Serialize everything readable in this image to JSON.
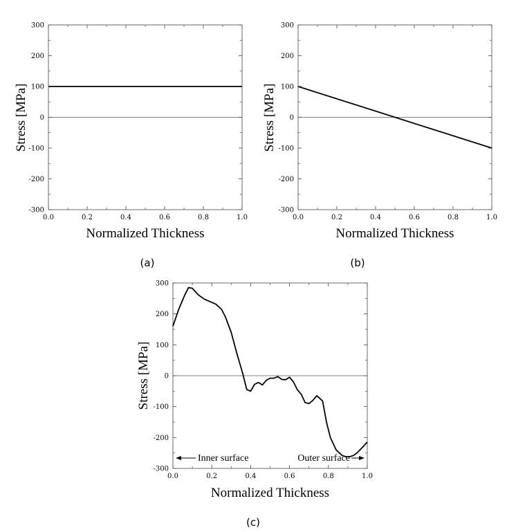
{
  "chart_data": [
    {
      "id": "a",
      "type": "line",
      "caption": "(a)",
      "xlabel": "Normalized Thickness",
      "ylabel": "Stress [MPa]",
      "xlim": [
        0,
        1
      ],
      "ylim": [
        -300,
        300
      ],
      "xticks": [
        "0.0",
        "0.2",
        "0.4",
        "0.6",
        "0.8",
        "1.0"
      ],
      "yticks": [
        "300",
        "200",
        "100",
        "0",
        "-100",
        "-200",
        "-300"
      ],
      "zero_line": true,
      "series": [
        {
          "name": "stress",
          "x": [
            0,
            1
          ],
          "y": [
            100,
            100
          ]
        }
      ]
    },
    {
      "id": "b",
      "type": "line",
      "caption": "(b)",
      "xlabel": "Normalized Thickness",
      "ylabel": "Stress [MPa]",
      "xlim": [
        0,
        1
      ],
      "ylim": [
        -300,
        300
      ],
      "xticks": [
        "0.0",
        "0.2",
        "0.4",
        "0.6",
        "0.8",
        "1.0"
      ],
      "yticks": [
        "300",
        "200",
        "100",
        "0",
        "-100",
        "-200",
        "-300"
      ],
      "zero_line": true,
      "series": [
        {
          "name": "stress",
          "x": [
            0,
            1
          ],
          "y": [
            100,
            -100
          ]
        }
      ]
    },
    {
      "id": "c",
      "type": "line",
      "caption": "(c)",
      "xlabel": "Normalized Thickness",
      "ylabel": "Stress [MPa]",
      "xlim": [
        0,
        1
      ],
      "ylim": [
        -300,
        300
      ],
      "xticks": [
        "0.0",
        "0.2",
        "0.4",
        "0.6",
        "0.8",
        "1.0"
      ],
      "yticks": [
        "300",
        "200",
        "100",
        "0",
        "-100",
        "-200",
        "-300"
      ],
      "zero_line": true,
      "annotations": {
        "inner": "Inner surface",
        "outer": "Outer surface"
      },
      "series": [
        {
          "name": "stress",
          "x": [
            0,
            0.03,
            0.06,
            0.08,
            0.1,
            0.13,
            0.16,
            0.19,
            0.22,
            0.25,
            0.27,
            0.3,
            0.33,
            0.36,
            0.38,
            0.4,
            0.42,
            0.44,
            0.46,
            0.48,
            0.5,
            0.52,
            0.54,
            0.56,
            0.58,
            0.6,
            0.62,
            0.64,
            0.66,
            0.68,
            0.7,
            0.72,
            0.74,
            0.75,
            0.77,
            0.79,
            0.81,
            0.84,
            0.87,
            0.89,
            0.91,
            0.93,
            0.95,
            0.97,
            1.0
          ],
          "y": [
            160,
            215,
            260,
            285,
            283,
            262,
            248,
            240,
            232,
            215,
            190,
            140,
            70,
            5,
            -45,
            -50,
            -28,
            -22,
            -30,
            -15,
            -8,
            -8,
            -3,
            -12,
            -13,
            -5,
            -20,
            -45,
            -60,
            -87,
            -90,
            -80,
            -65,
            -70,
            -82,
            -150,
            -200,
            -240,
            -258,
            -262,
            -262,
            -258,
            -248,
            -235,
            -215
          ]
        }
      ]
    }
  ]
}
